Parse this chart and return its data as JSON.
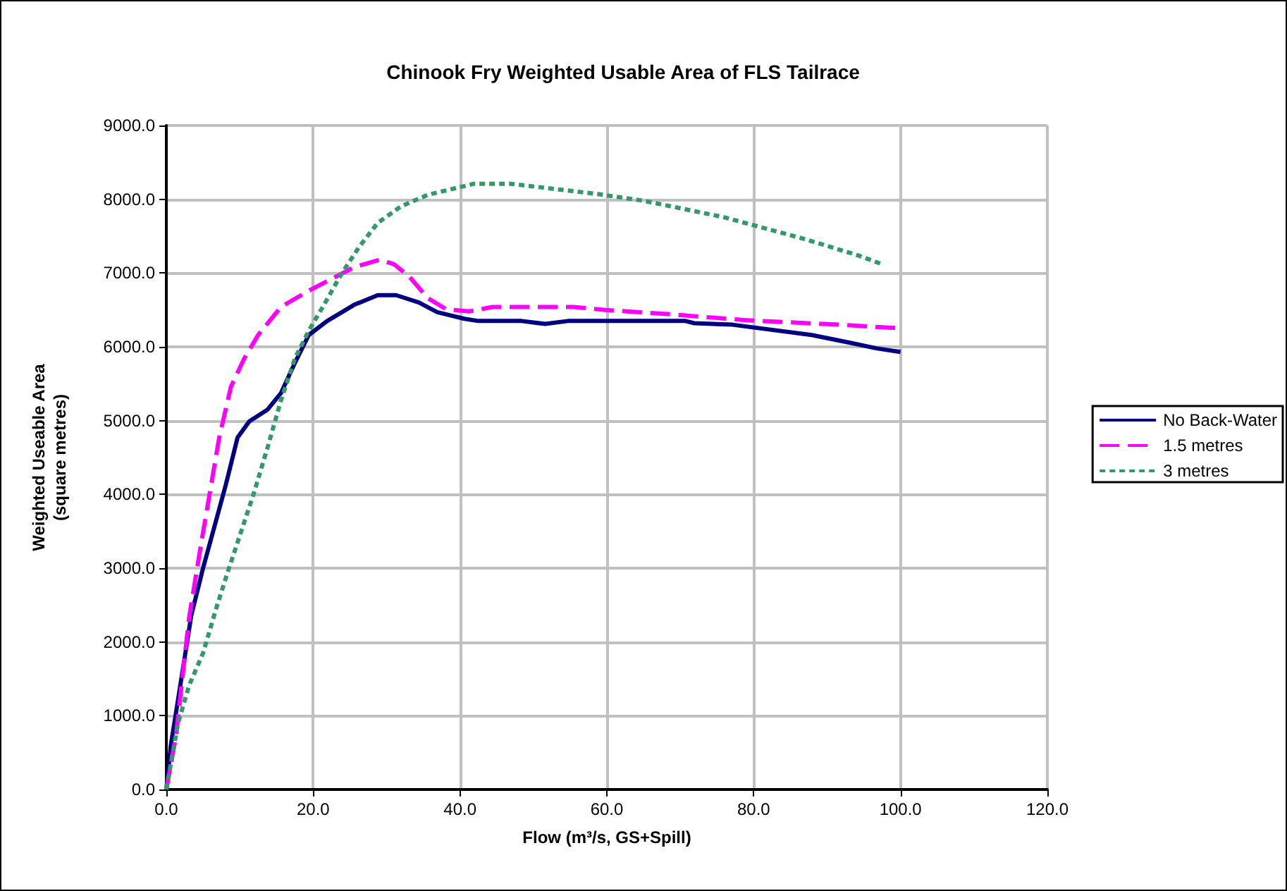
{
  "chart_data": {
    "type": "line",
    "title": "Chinook Fry Weighted Usable Area of FLS Tailrace",
    "xlabel": "Flow (m³/s, GS+Spill)",
    "ylabel": "Weighted Useable Area\n(square metres)",
    "xlim": [
      0,
      120
    ],
    "xticks": [
      {
        "value": 0,
        "label": "0.0"
      },
      {
        "value": 20,
        "label": "20.0"
      },
      {
        "value": 40,
        "label": "40.0"
      },
      {
        "value": 60,
        "label": "60.0"
      },
      {
        "value": 80,
        "label": "80.0"
      },
      {
        "value": 100,
        "label": "100.0"
      },
      {
        "value": 120,
        "label": "120.0"
      }
    ],
    "ylim": [
      0,
      9000
    ],
    "yticks": [
      {
        "value": 0,
        "label": "0.0"
      },
      {
        "value": 1000,
        "label": "1000.0"
      },
      {
        "value": 2000,
        "label": "2000.0"
      },
      {
        "value": 3000,
        "label": "3000.0"
      },
      {
        "value": 4000,
        "label": "4000.0"
      },
      {
        "value": 5000,
        "label": "5000.0"
      },
      {
        "value": 6000,
        "label": "6000.0"
      },
      {
        "value": 7000,
        "label": "7000.0"
      },
      {
        "value": 8000,
        "label": "8000.0"
      },
      {
        "value": 9000,
        "label": "9000.0"
      }
    ],
    "grid": true,
    "legend": "right",
    "marker": "none",
    "series": [
      {
        "name": "No Back-Water",
        "color": "#000080",
        "line_style": "solid",
        "x": [
          0,
          0.6,
          1.6,
          2.5,
          3.4,
          5,
          6.9,
          8.1,
          9.7,
          11.3,
          13.8,
          15.6,
          17.5,
          19.4,
          21.9,
          25.6,
          28.8,
          31.3,
          34.4,
          36.9,
          40.6,
          42.5,
          48.4,
          51.6,
          54.7,
          70.7,
          71.9,
          77.1,
          87.9,
          92.9,
          96.7,
          100
        ],
        "values": [
          0,
          590,
          1220,
          1790,
          2360,
          3000,
          3690,
          4130,
          4770,
          4990,
          5150,
          5370,
          5780,
          6160,
          6350,
          6570,
          6700,
          6700,
          6600,
          6470,
          6380,
          6350,
          6350,
          6310,
          6350,
          6350,
          6320,
          6300,
          6160,
          6060,
          5980,
          5930
        ]
      },
      {
        "name": "1.5 metres",
        "color": "#ff00ff",
        "line_style": "dashed",
        "x": [
          0,
          1.3,
          3.1,
          4.7,
          5.9,
          7.2,
          8.8,
          10.6,
          12.5,
          15.6,
          19.4,
          22.5,
          25.6,
          29.1,
          31,
          33.1,
          35.6,
          38.1,
          41.3,
          44.4,
          48.4,
          55.4,
          59.8,
          68.8,
          79,
          91.7,
          100
        ],
        "values": [
          0,
          720,
          2330,
          3310,
          4010,
          4770,
          5460,
          5840,
          6160,
          6540,
          6760,
          6920,
          7080,
          7180,
          7120,
          6950,
          6660,
          6510,
          6480,
          6540,
          6540,
          6540,
          6500,
          6440,
          6360,
          6300,
          6250
        ]
      },
      {
        "name": "3 metres",
        "color": "#339966",
        "line_style": "dotted",
        "x": [
          0,
          1.6,
          3.1,
          5,
          6.9,
          8.4,
          10,
          11.9,
          13.8,
          15.6,
          17.5,
          19.4,
          21.3,
          23.8,
          26.3,
          28.8,
          31.9,
          35.6,
          39.4,
          41.9,
          46.9,
          49.4,
          58.8,
          65,
          75.8,
          86.6,
          93.9,
          97.5
        ],
        "values": [
          0,
          900,
          1410,
          1850,
          2490,
          2960,
          3440,
          4010,
          4640,
          5270,
          5840,
          6220,
          6540,
          6980,
          7360,
          7680,
          7900,
          8060,
          8150,
          8210,
          8210,
          8180,
          8070,
          7980,
          7760,
          7470,
          7250,
          7120
        ]
      }
    ]
  }
}
